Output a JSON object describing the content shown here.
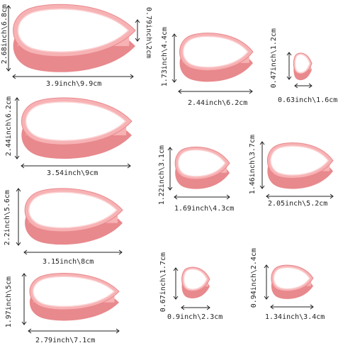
{
  "colors": {
    "cutter_fill": "#f7b2b4",
    "cutter_edge": "#e8898d",
    "cutter_inner": "#fbd3d4",
    "arrow": "#222222"
  },
  "cutters": [
    {
      "id": "c1",
      "width_label": "3.9inch\\9.9cm",
      "height_label": "2.68inch\\6.8cm",
      "depth_label": "0.79inch\\2cm"
    },
    {
      "id": "c2",
      "width_label": "3.54inch\\9cm",
      "height_label": "2.44inch\\6.2cm"
    },
    {
      "id": "c3",
      "width_label": "3.15inch\\8cm",
      "height_label": "2.2inch\\5.6cm"
    },
    {
      "id": "c4",
      "width_label": "2.79inch\\7.1cm",
      "height_label": "1.97inch\\5cm"
    },
    {
      "id": "c5",
      "width_label": "2.44inch\\6.2cm",
      "height_label": "1.73inch\\4.4cm"
    },
    {
      "id": "c6",
      "width_label": "1.69inch\\4.3cm",
      "height_label": "1.22inch\\3.1cm"
    },
    {
      "id": "c7",
      "width_label": "0.9inch\\2.3cm",
      "height_label": "0.67inch\\1.7cm"
    },
    {
      "id": "c8",
      "width_label": "0.63inch\\1.6cm",
      "height_label": "0.47inch\\1.2cm"
    },
    {
      "id": "c9",
      "width_label": "2.05inch\\5.2cm",
      "height_label": "1.46inch\\3.7cm"
    },
    {
      "id": "c10",
      "width_label": "1.34inch\\3.4cm",
      "height_label": "0.94inch\\2.4cm"
    }
  ]
}
